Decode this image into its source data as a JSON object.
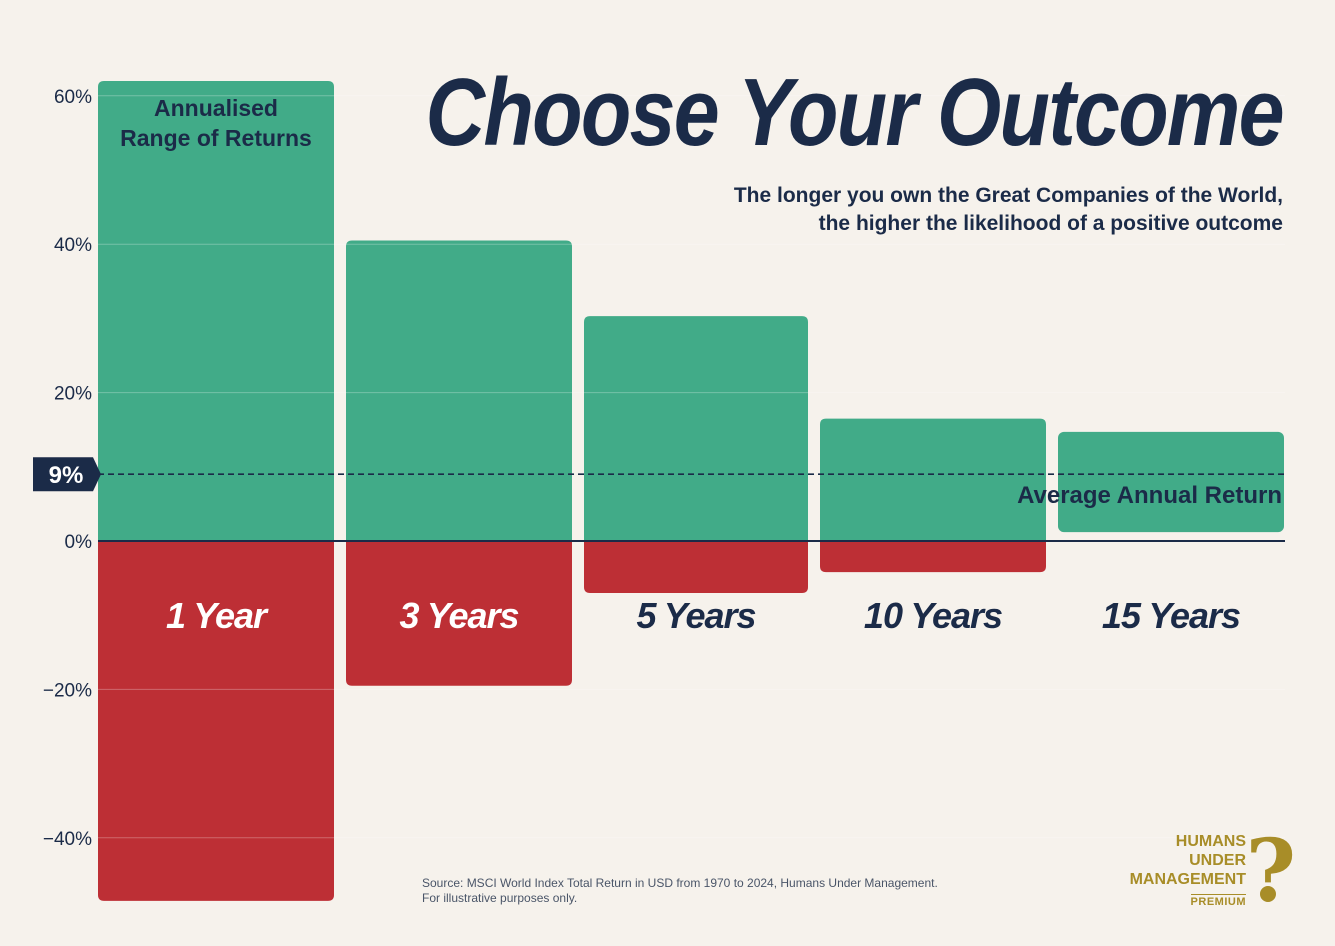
{
  "title": "Choose Your Outcome",
  "subtitle": [
    "The longer you own the Great Companies of the World,",
    "the higher the likelihood of a positive outcome"
  ],
  "source": [
    "Source: MSCI World Index Total Return in USD from 1970 to 2024, Humans Under Management.",
    "For illustrative purposes only."
  ],
  "logo": {
    "lines": [
      "HUMANS",
      "UNDER",
      "MANAGEMENT"
    ],
    "badge": "PREMIUM",
    "mark": "?"
  },
  "colors": {
    "positive": "#41ab88",
    "negative": "#bd2f35",
    "ink": "#1b2b48",
    "background": "#f6f2ec",
    "brand": "#a88d28"
  },
  "chart_data": {
    "type": "bar",
    "subtype": "floating-range",
    "series_label": "Annualised\nRange of Returns",
    "categories": [
      "1 Year",
      "3 Years",
      "5 Years",
      "10 Years",
      "15 Years"
    ],
    "max": [
      62,
      40.5,
      30.3,
      16.5,
      14.7
    ],
    "min": [
      -48.5,
      -19.5,
      -7,
      -4.2,
      1.2
    ],
    "ylim": [
      -50,
      65
    ],
    "yticks": [
      60,
      40,
      20,
      0,
      -20,
      -40
    ],
    "ytick_labels": [
      "60%",
      "40%",
      "20%",
      "0%",
      "−20%",
      "−40%"
    ],
    "average": {
      "value": 9,
      "label": "9%",
      "text": "Average Annual Return"
    }
  }
}
